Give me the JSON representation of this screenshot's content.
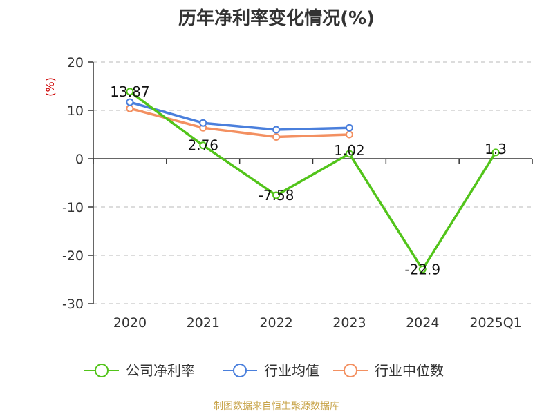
{
  "title": "历年净利率变化情况(%)",
  "source": "制图数据来自恒生聚源数据库",
  "chart_data": {
    "type": "line",
    "title": "历年净利率变化情况(%)",
    "ylabel": "(%)",
    "xlabel": "",
    "categories": [
      "2020",
      "2021",
      "2022",
      "2023",
      "2024",
      "2025Q1"
    ],
    "ylim": [
      -30,
      20
    ],
    "yticks": [
      20,
      10,
      0,
      -10,
      -20,
      -30
    ],
    "grid": true,
    "legend_position": "bottom",
    "series": [
      {
        "name": "公司净利率",
        "color": "#52c41a",
        "values": [
          13.87,
          2.76,
          -7.58,
          1.02,
          -22.9,
          1.3
        ],
        "labels": [
          "13.87",
          "2.76",
          "-7.58",
          "1.02",
          "-22.9",
          "1.3"
        ]
      },
      {
        "name": "行业均值",
        "color": "#4a7fdc",
        "values": [
          11.7,
          7.4,
          6.0,
          6.4,
          null,
          null
        ]
      },
      {
        "name": "行业中位数",
        "color": "#f39061",
        "values": [
          10.4,
          6.4,
          4.5,
          5.0,
          null,
          null
        ]
      }
    ]
  }
}
